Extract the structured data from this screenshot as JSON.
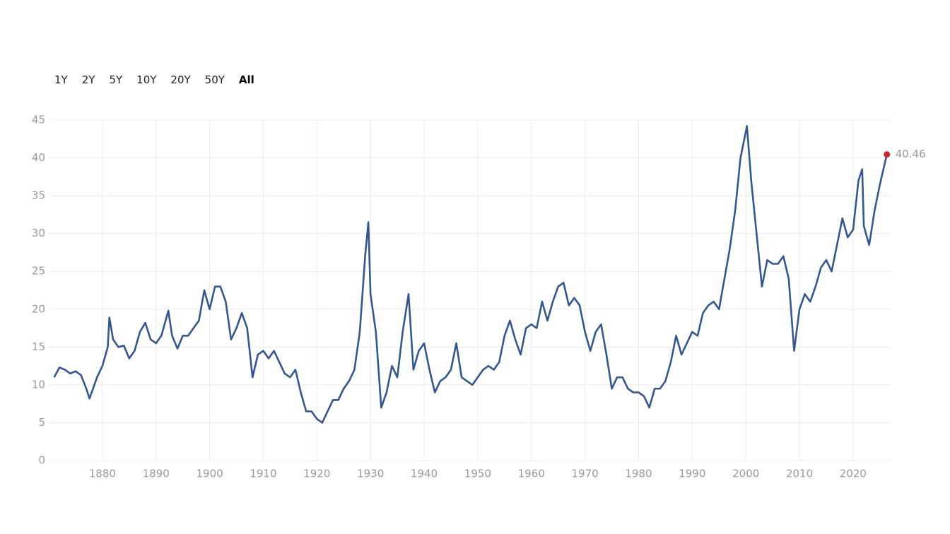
{
  "range_buttons": [
    "1Y",
    "2Y",
    "5Y",
    "10Y",
    "20Y",
    "50Y",
    "All"
  ],
  "selected_range": "All",
  "chart_data": {
    "type": "line",
    "x": [
      1871,
      1872,
      1873,
      1874,
      1875,
      1876,
      1877,
      1877.6,
      1879,
      1880,
      1881,
      1881.3,
      1882,
      1883,
      1884,
      1885,
      1886,
      1887,
      1888,
      1889,
      1890,
      1891,
      1892.3,
      1893,
      1894,
      1895,
      1896,
      1897,
      1898,
      1899,
      1900,
      1901,
      1902,
      1903,
      1904,
      1905,
      1906,
      1907,
      1908,
      1909,
      1910,
      1911,
      1912,
      1913,
      1914,
      1915,
      1916,
      1917,
      1918,
      1919,
      1920,
      1921,
      1922,
      1923,
      1924,
      1925,
      1926,
      1927,
      1928,
      1929,
      1929.6,
      1930,
      1931,
      1932,
      1933,
      1934,
      1935,
      1936,
      1937.1,
      1938,
      1939,
      1940,
      1941,
      1942,
      1943,
      1944,
      1945,
      1946,
      1947,
      1948,
      1949,
      1950,
      1951,
      1952,
      1953,
      1954,
      1955,
      1956,
      1957,
      1958,
      1959,
      1960,
      1961,
      1962,
      1963,
      1964,
      1965,
      1966,
      1967,
      1968,
      1969,
      1970,
      1971,
      1972,
      1973,
      1974,
      1975,
      1976,
      1977,
      1978,
      1979,
      1980,
      1981,
      1982,
      1983,
      1984,
      1985,
      1986,
      1987,
      1988,
      1989,
      1990,
      1991,
      1992,
      1993,
      1994,
      1995,
      1996,
      1997,
      1998,
      1999,
      2000.2,
      2001,
      2002,
      2003,
      2004,
      2005,
      2006,
      2007,
      2008,
      2009,
      2010,
      2011,
      2012,
      2013,
      2014,
      2015,
      2016,
      2017,
      2018,
      2019,
      2020,
      2021,
      2021.7,
      2022,
      2023,
      2024,
      2025,
      2026.3
    ],
    "series": [
      {
        "color": "#34578f",
        "values": [
          11,
          12.3,
          12,
          11.5,
          11.8,
          11.3,
          9.5,
          8.2,
          11,
          12.5,
          15,
          18.9,
          16,
          15,
          15.2,
          13.5,
          14.5,
          17,
          18.2,
          16,
          15.5,
          16.5,
          19.8,
          16.5,
          14.8,
          16.5,
          16.5,
          17.5,
          18.5,
          22.5,
          20,
          23,
          23,
          21,
          16,
          17.5,
          19.5,
          17.5,
          11,
          14,
          14.5,
          13.5,
          14.5,
          13,
          11.5,
          11,
          12,
          9,
          6.5,
          6.5,
          5.5,
          5,
          6.5,
          8,
          8,
          9.5,
          10.5,
          12,
          17,
          27,
          31.5,
          22,
          17,
          7,
          9,
          12.5,
          11,
          17,
          22,
          12,
          14.5,
          15.5,
          12,
          9,
          10.5,
          11,
          12,
          15.5,
          11,
          10.5,
          10,
          11,
          12,
          12.5,
          12,
          13,
          16.5,
          18.5,
          16,
          14,
          17.5,
          18,
          17.5,
          21,
          18.5,
          21,
          23,
          23.5,
          20.5,
          21.5,
          20.5,
          17,
          14.5,
          17,
          18,
          14,
          9.5,
          11,
          11,
          9.5,
          9,
          9,
          8.5,
          7,
          9.5,
          9.5,
          10.5,
          13,
          16.5,
          14,
          15.5,
          17,
          16.5,
          19.5,
          20.5,
          21,
          20,
          24,
          28,
          33,
          40,
          44.2,
          37,
          30,
          23,
          26.5,
          26,
          26,
          27,
          24,
          14.5,
          20,
          22,
          21,
          23,
          25.5,
          26.5,
          25,
          28.5,
          32,
          29.5,
          30.5,
          37,
          38.5,
          31,
          28.5,
          33,
          36.5,
          40.46
        ]
      }
    ],
    "last_point_color": "#d0242b",
    "xlim": [
      1870,
      2027
    ],
    "xticks": [
      1880,
      1890,
      1900,
      1910,
      1920,
      1930,
      1940,
      1950,
      1960,
      1970,
      1980,
      1990,
      2000,
      2010,
      2020
    ],
    "ylim": [
      0,
      45
    ],
    "yticks": [
      0,
      5,
      10,
      15,
      20,
      25,
      30,
      35,
      40,
      45
    ],
    "grid": true
  }
}
